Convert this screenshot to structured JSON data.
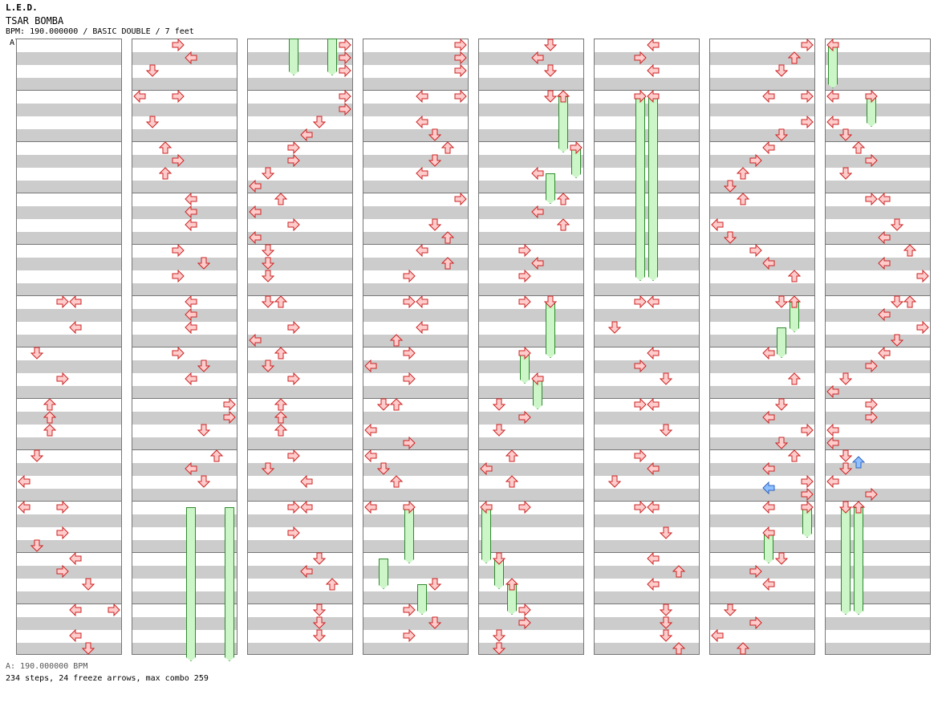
{
  "header": {
    "artist": "L.E.D.",
    "title": "TSAR BOMBA",
    "info": "BPM: 190.000000 / BASIC DOUBLE / 7 feet"
  },
  "bpm_marker": "A",
  "footer": {
    "bpm": "A: 190.000000 BPM",
    "stats": "234 steps, 24 freeze arrows, max combo 259"
  },
  "colors": {
    "arrow_fill": "#ffcccc",
    "arrow_stroke": "#cc2222",
    "freeze_fill": "#ccf5c8",
    "freeze_stroke": "#2f8a2f",
    "blue_arrow_fill": "#8fc0ff",
    "blue_arrow_stroke": "#2e63c0"
  },
  "icons": {
    "step": "step-arrow-icon",
    "freeze": "freeze-arrow-icon"
  },
  "chart": {
    "columns": 8,
    "measures_per_column": 12,
    "lanes": 8,
    "lane_directions": [
      "left",
      "down",
      "up",
      "right",
      "left",
      "down",
      "up",
      "right"
    ]
  }
}
